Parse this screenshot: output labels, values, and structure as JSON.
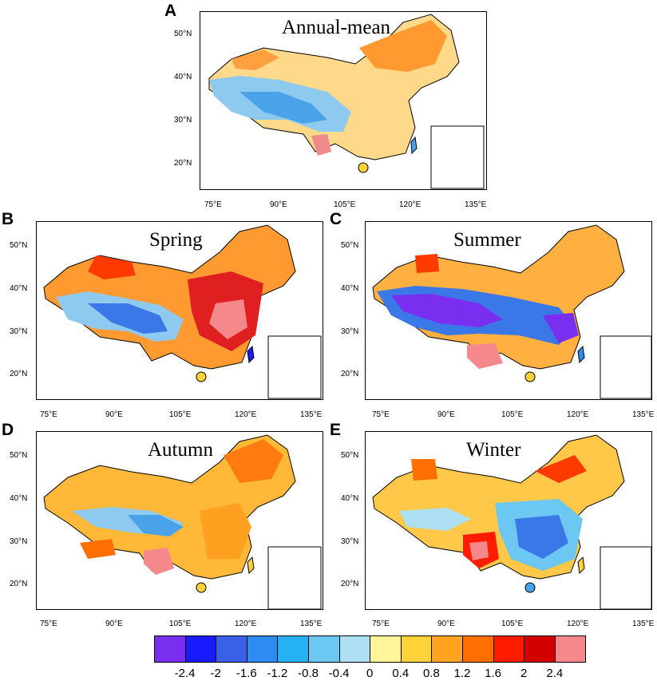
{
  "panels": [
    {
      "letter": "A",
      "title": "Annual-mean"
    },
    {
      "letter": "B",
      "title": "Spring"
    },
    {
      "letter": "C",
      "title": "Summer"
    },
    {
      "letter": "D",
      "title": "Autumn"
    },
    {
      "letter": "E",
      "title": "Winter"
    }
  ],
  "axes": {
    "lat_labels": [
      "50°N",
      "40°N",
      "30°N",
      "20°N"
    ],
    "lon_labels": [
      "75°E",
      "90°E",
      "105°E",
      "120°E",
      "135°E"
    ]
  },
  "colorbar": {
    "colors": [
      "#7a2ef0",
      "#1a1aff",
      "#3a60e8",
      "#2e8cf0",
      "#26b2f2",
      "#6cc7f2",
      "#aee0f4",
      "#fff49a",
      "#ffd23a",
      "#ffa320",
      "#ff6e00",
      "#ff1c00",
      "#d40000",
      "#f4888a"
    ],
    "labels": [
      "-2.4",
      "-2",
      "-1.6",
      "-1.2",
      "-0.8",
      "-0.4",
      "0",
      "0.4",
      "0.8",
      "1.2",
      "1.6",
      "2",
      "2.4"
    ]
  }
}
